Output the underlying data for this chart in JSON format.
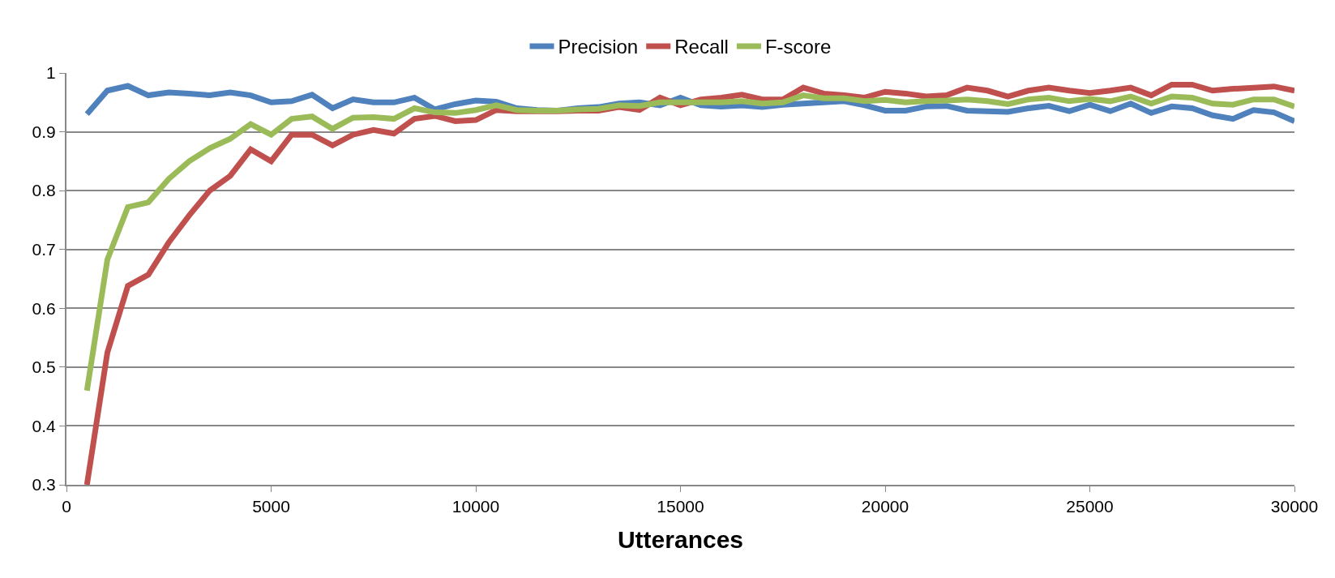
{
  "chart_data": {
    "type": "line",
    "xlabel": "Utterances",
    "x": [
      500,
      1000,
      1500,
      2000,
      2500,
      3000,
      3500,
      4000,
      4500,
      5000,
      5500,
      6000,
      6500,
      7000,
      7500,
      8000,
      8500,
      9000,
      9500,
      10000,
      10500,
      11000,
      11500,
      12000,
      12500,
      13000,
      13500,
      14000,
      14500,
      15000,
      15500,
      16000,
      16500,
      17000,
      17500,
      18000,
      18500,
      19000,
      19500,
      20000,
      20500,
      21000,
      21500,
      22000,
      22500,
      23000,
      23500,
      24000,
      24500,
      25000,
      25500,
      26000,
      26500,
      27000,
      27500,
      28000,
      28500,
      29000,
      29500,
      30000
    ],
    "series": [
      {
        "name": "Precision",
        "color": "#4f81bd",
        "values": [
          0.93,
          0.97,
          0.978,
          0.962,
          0.967,
          0.965,
          0.962,
          0.967,
          0.962,
          0.95,
          0.952,
          0.963,
          0.94,
          0.955,
          0.95,
          0.95,
          0.958,
          0.938,
          0.947,
          0.953,
          0.951,
          0.94,
          0.937,
          0.936,
          0.94,
          0.942,
          0.948,
          0.95,
          0.945,
          0.958,
          0.945,
          0.943,
          0.945,
          0.942,
          0.946,
          0.948,
          0.95,
          0.952,
          0.945,
          0.936,
          0.936,
          0.943,
          0.944,
          0.936,
          0.935,
          0.934,
          0.94,
          0.944,
          0.935,
          0.946,
          0.935,
          0.948,
          0.932,
          0.943,
          0.94,
          0.928,
          0.922,
          0.937,
          0.933,
          0.918
        ]
      },
      {
        "name": "Recall",
        "color": "#c0504d",
        "values": [
          0.3,
          0.525,
          0.638,
          0.657,
          0.712,
          0.758,
          0.8,
          0.825,
          0.87,
          0.85,
          0.895,
          0.895,
          0.877,
          0.895,
          0.903,
          0.897,
          0.922,
          0.927,
          0.918,
          0.92,
          0.937,
          0.935,
          0.935,
          0.935,
          0.936,
          0.936,
          0.942,
          0.937,
          0.958,
          0.945,
          0.955,
          0.958,
          0.963,
          0.955,
          0.955,
          0.975,
          0.965,
          0.962,
          0.958,
          0.968,
          0.965,
          0.96,
          0.962,
          0.975,
          0.97,
          0.96,
          0.97,
          0.975,
          0.97,
          0.966,
          0.97,
          0.975,
          0.962,
          0.98,
          0.98,
          0.97,
          0.973,
          0.975,
          0.977,
          0.97
        ]
      },
      {
        "name": "F-score",
        "color": "#9bbb59",
        "values": [
          0.46,
          0.683,
          0.772,
          0.78,
          0.82,
          0.85,
          0.872,
          0.888,
          0.913,
          0.895,
          0.922,
          0.926,
          0.905,
          0.924,
          0.925,
          0.922,
          0.94,
          0.933,
          0.932,
          0.937,
          0.945,
          0.937,
          0.936,
          0.936,
          0.938,
          0.939,
          0.945,
          0.944,
          0.95,
          0.95,
          0.95,
          0.95,
          0.952,
          0.948,
          0.95,
          0.962,
          0.957,
          0.957,
          0.952,
          0.954,
          0.95,
          0.952,
          0.953,
          0.955,
          0.952,
          0.947,
          0.955,
          0.958,
          0.952,
          0.956,
          0.952,
          0.96,
          0.948,
          0.96,
          0.958,
          0.948,
          0.946,
          0.955,
          0.955,
          0.943
        ]
      }
    ],
    "xlim": [
      0,
      30000
    ],
    "xticks": [
      0,
      5000,
      10000,
      15000,
      20000,
      25000,
      30000
    ],
    "ylim": [
      0.3,
      1
    ],
    "yticks": [
      0.3,
      0.4,
      0.5,
      0.6,
      0.7,
      0.8,
      0.9,
      1
    ],
    "grid": "y",
    "legend": "top",
    "marker": "none",
    "line_style": "solid"
  }
}
